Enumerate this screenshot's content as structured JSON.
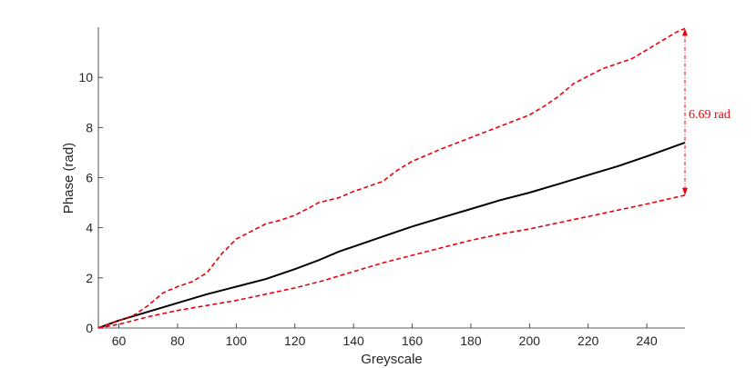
{
  "chart_data": {
    "type": "line",
    "title": "",
    "xlabel": "Greyscale",
    "ylabel": "Phase (rad)",
    "xlim": [
      53,
      253
    ],
    "ylim": [
      0,
      12
    ],
    "xticks": [
      60,
      80,
      100,
      120,
      140,
      160,
      180,
      200,
      220,
      240
    ],
    "yticks": [
      0,
      2,
      4,
      6,
      8,
      10
    ],
    "grid": false,
    "legend": "none",
    "series": [
      {
        "style": "solid",
        "color": "#000000",
        "x": [
          53,
          60,
          70,
          80,
          90,
          100,
          110,
          120,
          128,
          135,
          140,
          150,
          160,
          170,
          180,
          190,
          200,
          210,
          220,
          230,
          240,
          253
        ],
        "y": [
          0,
          0.3,
          0.65,
          1.0,
          1.35,
          1.65,
          1.95,
          2.35,
          2.7,
          3.05,
          3.25,
          3.65,
          4.05,
          4.4,
          4.75,
          5.1,
          5.4,
          5.75,
          6.1,
          6.45,
          6.85,
          7.4
        ]
      },
      {
        "style": "dashed",
        "color": "#e8000b",
        "x": [
          53,
          60,
          65,
          70,
          75,
          80,
          85,
          90,
          95,
          100,
          105,
          110,
          115,
          120,
          125,
          128,
          135,
          140,
          145,
          150,
          155,
          160,
          170,
          180,
          190,
          200,
          205,
          210,
          215,
          220,
          225,
          230,
          235,
          240,
          245,
          250,
          253
        ],
        "y": [
          0,
          0.3,
          0.5,
          0.9,
          1.4,
          1.65,
          1.85,
          2.2,
          2.95,
          3.55,
          3.85,
          4.15,
          4.3,
          4.5,
          4.8,
          5.0,
          5.2,
          5.45,
          5.65,
          5.85,
          6.3,
          6.65,
          7.15,
          7.6,
          8.05,
          8.5,
          8.85,
          9.25,
          9.75,
          10.05,
          10.35,
          10.55,
          10.75,
          11.1,
          11.45,
          11.8,
          11.95
        ]
      },
      {
        "style": "dashed",
        "color": "#e8000b",
        "x": [
          53,
          60,
          70,
          80,
          90,
          100,
          110,
          120,
          130,
          140,
          150,
          160,
          170,
          180,
          190,
          200,
          210,
          220,
          230,
          240,
          253
        ],
        "y": [
          0,
          0.15,
          0.45,
          0.7,
          0.9,
          1.1,
          1.35,
          1.6,
          1.9,
          2.25,
          2.6,
          2.9,
          3.2,
          3.5,
          3.75,
          3.95,
          4.2,
          4.45,
          4.7,
          4.95,
          5.3
        ]
      }
    ],
    "annotations": [
      {
        "text": "6.69 rad",
        "color": "#e8000b",
        "arrow_x": 253,
        "arrow_y_from": 5.3,
        "arrow_y_to": 11.95
      }
    ]
  }
}
